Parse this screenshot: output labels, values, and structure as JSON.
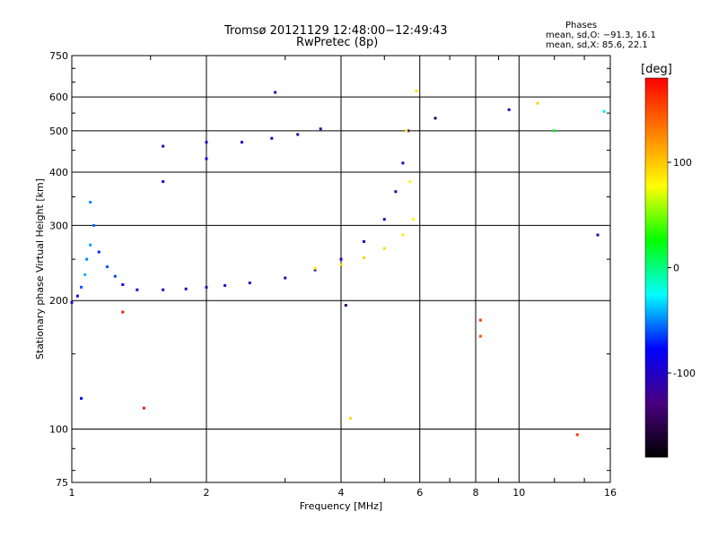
{
  "header": {
    "title": "Tromsø 20121129 12:48:00−12:49:43",
    "subtitle": "RwPretec (8p)"
  },
  "stats": {
    "heading": "Phases",
    "line_o": "mean, sd,O: −91.3, 16.1",
    "line_x": "mean, sd,X:  85.6, 22.1"
  },
  "colorbar": {
    "title": "[deg]",
    "ticks": [
      {
        "value": 100,
        "label": "100"
      },
      {
        "value": 0,
        "label": "0"
      },
      {
        "value": -100,
        "label": "-100"
      }
    ],
    "range": [
      -180,
      180
    ],
    "stops": [
      "#000000",
      "#4a0080",
      "#0000ff",
      "#00ffff",
      "#00ff00",
      "#ffff00",
      "#ff8000",
      "#ff0000"
    ]
  },
  "chart_data": {
    "type": "scatter",
    "title": "Tromsø 20121129 12:48:00−12:49:43",
    "subtitle": "RwPretec (8p)",
    "xlabel": "Frequency [MHz]",
    "ylabel": "Stationary phase Virtual Height [km]",
    "x_scale": "log",
    "y_scale": "log",
    "xlim": [
      1,
      16
    ],
    "ylim": [
      75,
      750
    ],
    "x_ticks": [
      {
        "value": 1,
        "label": "1"
      },
      {
        "value": 2,
        "label": "2"
      },
      {
        "value": 4,
        "label": "4"
      },
      {
        "value": 6,
        "label": "6"
      },
      {
        "value": 8,
        "label": "8"
      },
      {
        "value": 10,
        "label": "10"
      },
      {
        "value": 16,
        "label": "16"
      }
    ],
    "y_ticks": [
      {
        "value": 75,
        "label": "75"
      },
      {
        "value": 100,
        "label": "100"
      },
      {
        "value": 200,
        "label": "200"
      },
      {
        "value": 300,
        "label": "300"
      },
      {
        "value": 400,
        "label": "400"
      },
      {
        "value": 500,
        "label": "500"
      },
      {
        "value": 600,
        "label": "600"
      },
      {
        "value": 750,
        "label": "750"
      }
    ],
    "grid": true,
    "color_variable": "phase [deg]",
    "series": [
      {
        "points": [
          {
            "x": 1.0,
            "y": 198,
            "phase": -100
          },
          {
            "x": 1.03,
            "y": 205,
            "phase": -90
          },
          {
            "x": 1.05,
            "y": 215,
            "phase": -60
          },
          {
            "x": 1.07,
            "y": 230,
            "phase": -40
          },
          {
            "x": 1.08,
            "y": 250,
            "phase": -50
          },
          {
            "x": 1.1,
            "y": 270,
            "phase": -45
          },
          {
            "x": 1.12,
            "y": 300,
            "phase": -55
          },
          {
            "x": 1.1,
            "y": 340,
            "phase": -50
          },
          {
            "x": 1.15,
            "y": 260,
            "phase": -70
          },
          {
            "x": 1.2,
            "y": 240,
            "phase": -60
          },
          {
            "x": 1.25,
            "y": 228,
            "phase": -65
          },
          {
            "x": 1.3,
            "y": 218,
            "phase": -80
          },
          {
            "x": 1.4,
            "y": 212,
            "phase": -95
          },
          {
            "x": 1.6,
            "y": 212,
            "phase": -100
          },
          {
            "x": 1.8,
            "y": 213,
            "phase": -105
          },
          {
            "x": 2.0,
            "y": 215,
            "phase": -105
          },
          {
            "x": 2.2,
            "y": 217,
            "phase": -100
          },
          {
            "x": 2.5,
            "y": 220,
            "phase": -100
          },
          {
            "x": 3.0,
            "y": 226,
            "phase": -105
          },
          {
            "x": 3.5,
            "y": 236,
            "phase": -105
          },
          {
            "x": 4.0,
            "y": 250,
            "phase": -105
          },
          {
            "x": 4.5,
            "y": 275,
            "phase": -105
          },
          {
            "x": 5.0,
            "y": 310,
            "phase": -110
          },
          {
            "x": 5.3,
            "y": 360,
            "phase": -110
          },
          {
            "x": 5.5,
            "y": 420,
            "phase": -110
          },
          {
            "x": 5.65,
            "y": 500,
            "phase": -110
          },
          {
            "x": 3.5,
            "y": 238,
            "phase": 90
          },
          {
            "x": 4.0,
            "y": 243,
            "phase": 95
          },
          {
            "x": 4.5,
            "y": 252,
            "phase": 95
          },
          {
            "x": 5.0,
            "y": 265,
            "phase": 90
          },
          {
            "x": 5.5,
            "y": 285,
            "phase": 85
          },
          {
            "x": 5.8,
            "y": 310,
            "phase": 80
          },
          {
            "x": 5.7,
            "y": 380,
            "phase": 80
          },
          {
            "x": 5.6,
            "y": 500,
            "phase": 85
          },
          {
            "x": 5.9,
            "y": 620,
            "phase": 90
          },
          {
            "x": 1.6,
            "y": 380,
            "phase": -100
          },
          {
            "x": 1.6,
            "y": 460,
            "phase": -100
          },
          {
            "x": 2.0,
            "y": 430,
            "phase": -90
          },
          {
            "x": 2.0,
            "y": 470,
            "phase": -100
          },
          {
            "x": 2.4,
            "y": 470,
            "phase": -100
          },
          {
            "x": 2.8,
            "y": 480,
            "phase": -110
          },
          {
            "x": 3.2,
            "y": 490,
            "phase": -115
          },
          {
            "x": 3.6,
            "y": 505,
            "phase": -115
          },
          {
            "x": 1.05,
            "y": 118,
            "phase": -80
          },
          {
            "x": 2.85,
            "y": 615,
            "phase": -110
          },
          {
            "x": 4.1,
            "y": 195,
            "phase": -140
          },
          {
            "x": 6.5,
            "y": 535,
            "phase": -150
          },
          {
            "x": 9.5,
            "y": 560,
            "phase": -100
          },
          {
            "x": 11.0,
            "y": 580,
            "phase": 95
          },
          {
            "x": 8.2,
            "y": 180,
            "phase": 160
          },
          {
            "x": 8.2,
            "y": 165,
            "phase": 150
          },
          {
            "x": 12.0,
            "y": 500,
            "phase": 20
          },
          {
            "x": 15.5,
            "y": 555,
            "phase": -30
          },
          {
            "x": 15.0,
            "y": 285,
            "phase": -110
          },
          {
            "x": 1.45,
            "y": 112,
            "phase": 170
          },
          {
            "x": 1.3,
            "y": 188,
            "phase": 170
          },
          {
            "x": 4.2,
            "y": 106,
            "phase": 90
          },
          {
            "x": 13.5,
            "y": 97,
            "phase": 160
          }
        ]
      }
    ]
  }
}
